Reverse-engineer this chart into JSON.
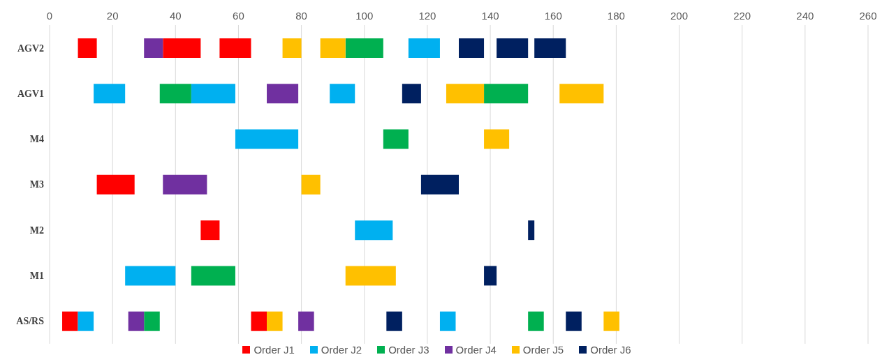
{
  "chart_data": {
    "type": "bar",
    "orientation": "horizontal",
    "categories": [
      "AGV2",
      "AGV1",
      "M4",
      "M3",
      "M2",
      "M1",
      "AS/RS"
    ],
    "xlim": [
      0,
      260
    ],
    "xticks": [
      0,
      20,
      40,
      60,
      80,
      100,
      120,
      140,
      160,
      180,
      200,
      220,
      240,
      260
    ],
    "grid": "x",
    "legend": "bottom",
    "series": [
      {
        "name": "Order J1",
        "color": "#ff0000",
        "base": [
          9,
          null,
          null,
          15,
          48,
          null,
          4
        ],
        "values": [
          6,
          null,
          null,
          12,
          6,
          null,
          5
        ]
      },
      {
        "color": "#ff0000",
        "base": [
          36,
          null,
          null,
          null,
          null,
          null,
          64
        ],
        "values": [
          12,
          null,
          null,
          null,
          null,
          null,
          5
        ]
      },
      {
        "color": "#ff0000",
        "base": [
          54,
          null,
          null,
          null,
          null,
          null,
          null
        ],
        "values": [
          10,
          null,
          null,
          null,
          null,
          null,
          null
        ]
      },
      {
        "name": "Order J2",
        "color": "#00b0f0",
        "base": [
          114,
          14,
          59,
          null,
          97,
          24,
          9
        ],
        "values": [
          10,
          10,
          20,
          null,
          12,
          16,
          5
        ]
      },
      {
        "color": "#00b0f0",
        "base": [
          null,
          45,
          null,
          null,
          null,
          null,
          124
        ],
        "values": [
          null,
          14,
          null,
          null,
          null,
          null,
          5
        ]
      },
      {
        "color": "#00b0f0",
        "base": [
          null,
          89,
          null,
          null,
          null,
          null,
          null
        ],
        "values": [
          null,
          8,
          null,
          null,
          null,
          null,
          null
        ]
      },
      {
        "name": "Order J3",
        "color": "#00b050",
        "base": [
          94,
          35,
          106,
          null,
          null,
          45,
          30
        ],
        "values": [
          12,
          10,
          8,
          null,
          null,
          14,
          5
        ]
      },
      {
        "color": "#00b050",
        "base": [
          null,
          138,
          null,
          null,
          null,
          null,
          152
        ],
        "values": [
          null,
          14,
          null,
          null,
          null,
          null,
          5
        ]
      },
      {
        "name": "Order J4",
        "color": "#7030a0",
        "base": [
          30,
          69,
          null,
          36,
          null,
          null,
          25
        ],
        "values": [
          6,
          10,
          null,
          14,
          null,
          null,
          5
        ]
      },
      {
        "color": "#7030a0",
        "base": [
          null,
          null,
          null,
          null,
          null,
          null,
          79
        ],
        "values": [
          null,
          null,
          null,
          null,
          null,
          null,
          5
        ]
      },
      {
        "name": "Order J5",
        "color": "#ffc000",
        "base": [
          74,
          126,
          138,
          80,
          null,
          94,
          69
        ],
        "values": [
          6,
          12,
          8,
          6,
          null,
          16,
          5
        ]
      },
      {
        "color": "#ffc000",
        "base": [
          86,
          162,
          null,
          null,
          null,
          null,
          176
        ],
        "values": [
          8,
          14,
          null,
          null,
          null,
          null,
          5
        ]
      },
      {
        "name": "Order J6",
        "color": "#002060",
        "base": [
          130,
          112,
          null,
          118,
          152,
          138,
          107
        ],
        "values": [
          8,
          6,
          null,
          12,
          2,
          4,
          5
        ]
      },
      {
        "color": "#002060",
        "base": [
          142,
          null,
          null,
          null,
          null,
          null,
          164
        ],
        "values": [
          10,
          null,
          null,
          null,
          null,
          null,
          5
        ]
      },
      {
        "color": "#002060",
        "base": [
          154,
          null,
          null,
          null,
          null,
          null,
          null
        ],
        "values": [
          10,
          null,
          null,
          null,
          null,
          null,
          null
        ]
      }
    ]
  }
}
